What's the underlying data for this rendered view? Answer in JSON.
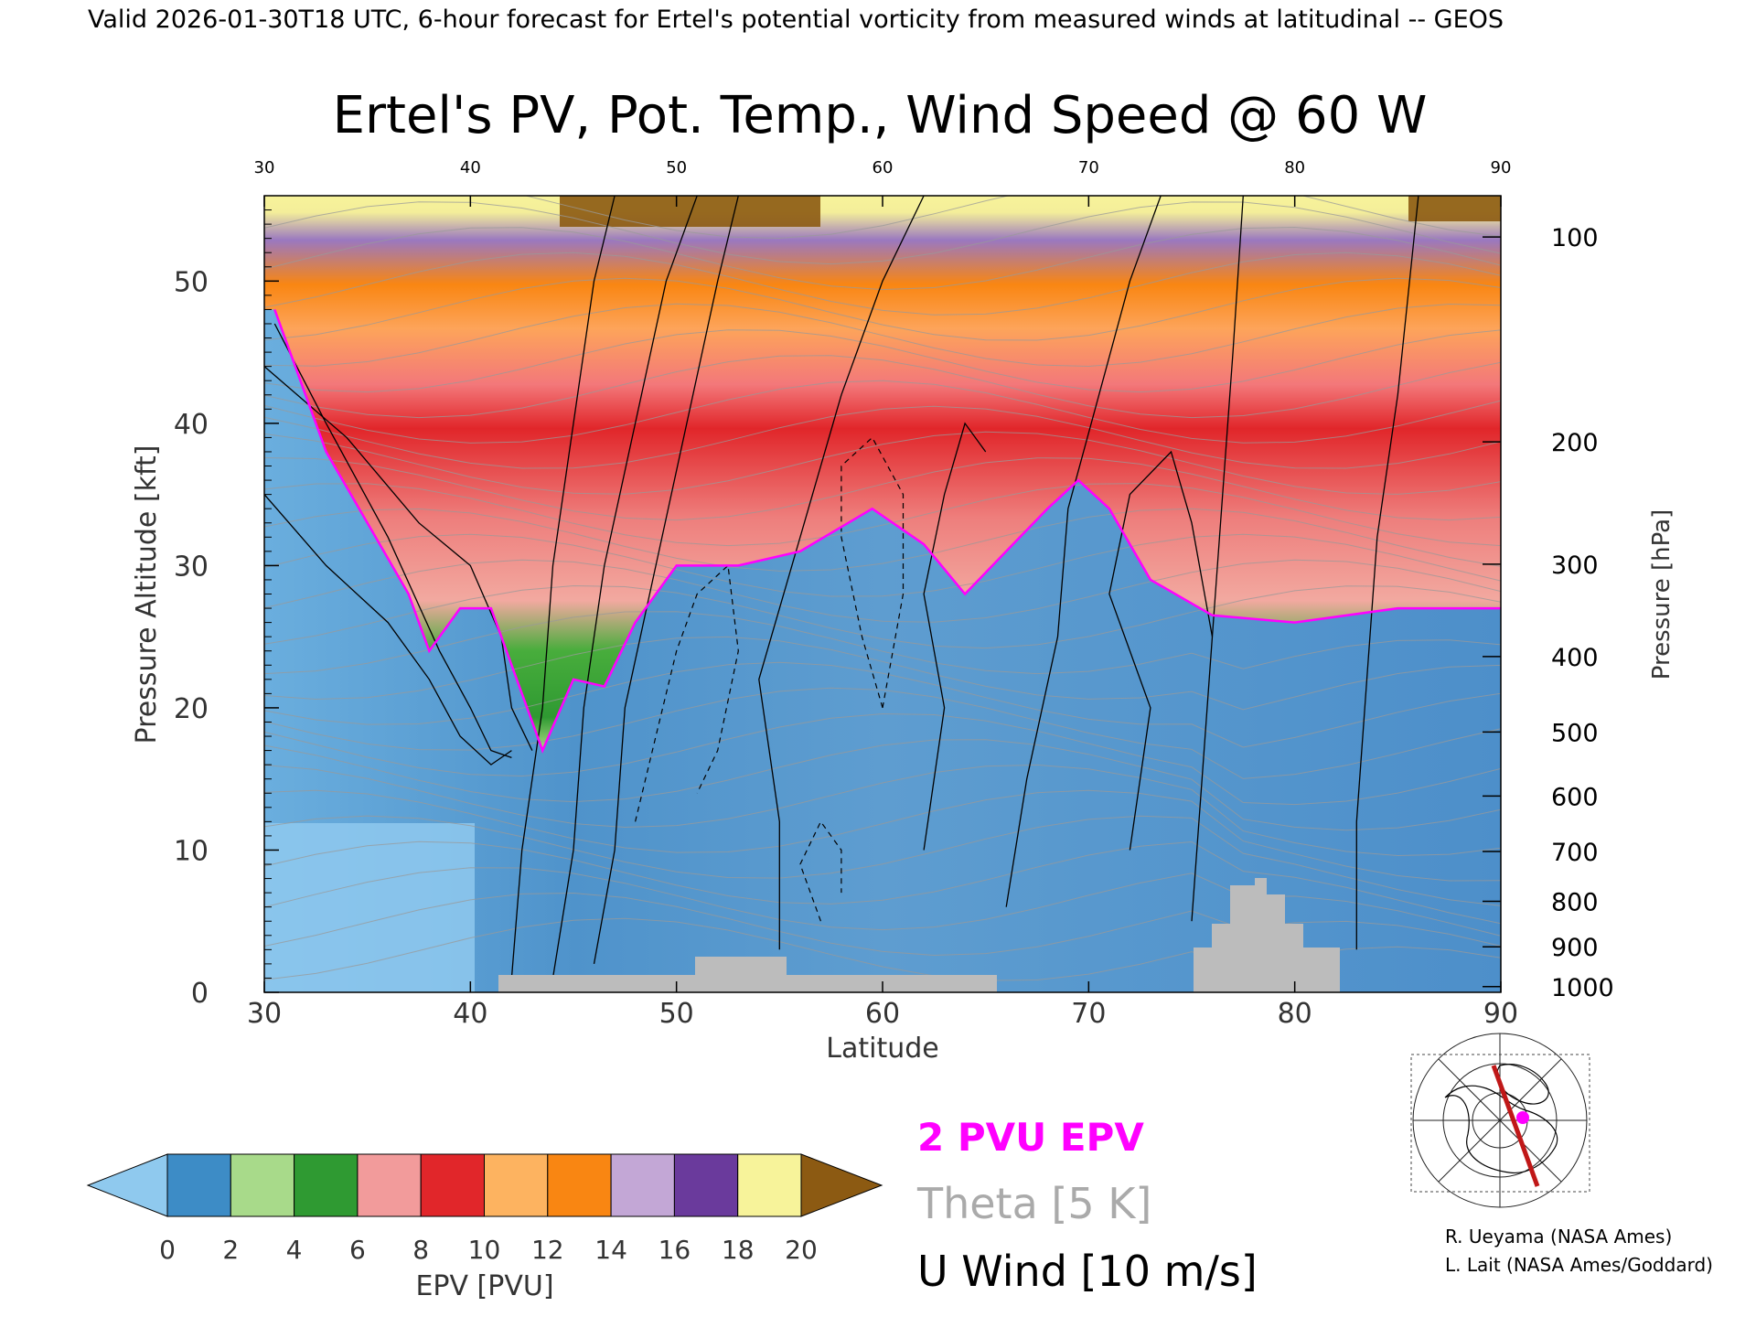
{
  "header": {
    "valid_line": "Valid 2026-01-30T18 UTC, 6-hour forecast for Ertel's potential vorticity from measured winds at latitudinal -- GEOS"
  },
  "chart_data": {
    "type": "heatmap",
    "title": "Ertel's PV, Pot. Temp., Wind Speed @ 60 W",
    "xlabel": "Latitude",
    "ylabel": "Pressure Altitude [kft]",
    "y2label": "Pressure [hPa]",
    "xlim": [
      30,
      90
    ],
    "ylim": [
      0,
      56
    ],
    "x_ticks": [
      "30",
      "40",
      "50",
      "60",
      "70",
      "80",
      "90"
    ],
    "y_ticks": [
      "0",
      "10",
      "20",
      "30",
      "40",
      "50"
    ],
    "pressure_ticks": [
      {
        "label": "100",
        "kft": 53.1
      },
      {
        "label": "200",
        "kft": 38.7
      },
      {
        "label": "300",
        "kft": 30.1
      },
      {
        "label": "400",
        "kft": 23.6
      },
      {
        "label": "500",
        "kft": 18.3
      },
      {
        "label": "600",
        "kft": 13.8
      },
      {
        "label": "700",
        "kft": 9.9
      },
      {
        "label": "800",
        "kft": 6.4
      },
      {
        "label": "900",
        "kft": 3.2
      },
      {
        "label": "1000",
        "kft": 0.4
      }
    ],
    "tropopause_2pvu": [
      {
        "lat": 30.5,
        "kft": 48
      },
      {
        "lat": 31.5,
        "kft": 44
      },
      {
        "lat": 33,
        "kft": 38
      },
      {
        "lat": 35,
        "kft": 33
      },
      {
        "lat": 37,
        "kft": 28
      },
      {
        "lat": 38,
        "kft": 24
      },
      {
        "lat": 39.5,
        "kft": 27
      },
      {
        "lat": 41,
        "kft": 27
      },
      {
        "lat": 42.5,
        "kft": 21
      },
      {
        "lat": 43.5,
        "kft": 17
      },
      {
        "lat": 45,
        "kft": 22
      },
      {
        "lat": 46.5,
        "kft": 21.5
      },
      {
        "lat": 48,
        "kft": 26
      },
      {
        "lat": 50,
        "kft": 30
      },
      {
        "lat": 53,
        "kft": 30
      },
      {
        "lat": 56,
        "kft": 31
      },
      {
        "lat": 59.5,
        "kft": 34
      },
      {
        "lat": 62,
        "kft": 31.5
      },
      {
        "lat": 64,
        "kft": 28
      },
      {
        "lat": 66,
        "kft": 31
      },
      {
        "lat": 68,
        "kft": 34
      },
      {
        "lat": 69.5,
        "kft": 36
      },
      {
        "lat": 71,
        "kft": 34
      },
      {
        "lat": 73,
        "kft": 29
      },
      {
        "lat": 76,
        "kft": 26.5
      },
      {
        "lat": 80,
        "kft": 26
      },
      {
        "lat": 85,
        "kft": 27
      },
      {
        "lat": 90,
        "kft": 27
      }
    ],
    "colorbar": {
      "label": "EPV [PVU]",
      "tick_labels": [
        "0",
        "2",
        "4",
        "6",
        "8",
        "10",
        "12",
        "14",
        "16",
        "18",
        "20"
      ],
      "colors": [
        "#8fc9ee",
        "#3d8cc6",
        "#a8da8a",
        "#2f9a32",
        "#f29b9b",
        "#e1262a",
        "#fdb360",
        "#f98612",
        "#c3a7d6",
        "#6a3a9c",
        "#f7f39a",
        "#8c5a12"
      ]
    },
    "legend": [
      {
        "label": "2 PVU EPV",
        "color": "#ff00ff"
      },
      {
        "label": "Theta [5 K]",
        "color": "#aaaaaa"
      },
      {
        "label": "U Wind [10 m/s]",
        "color": "#000000"
      }
    ],
    "credits": [
      "R. Ueyama (NASA Ames)",
      "L. Lait (NASA Ames/Goddard)"
    ]
  }
}
